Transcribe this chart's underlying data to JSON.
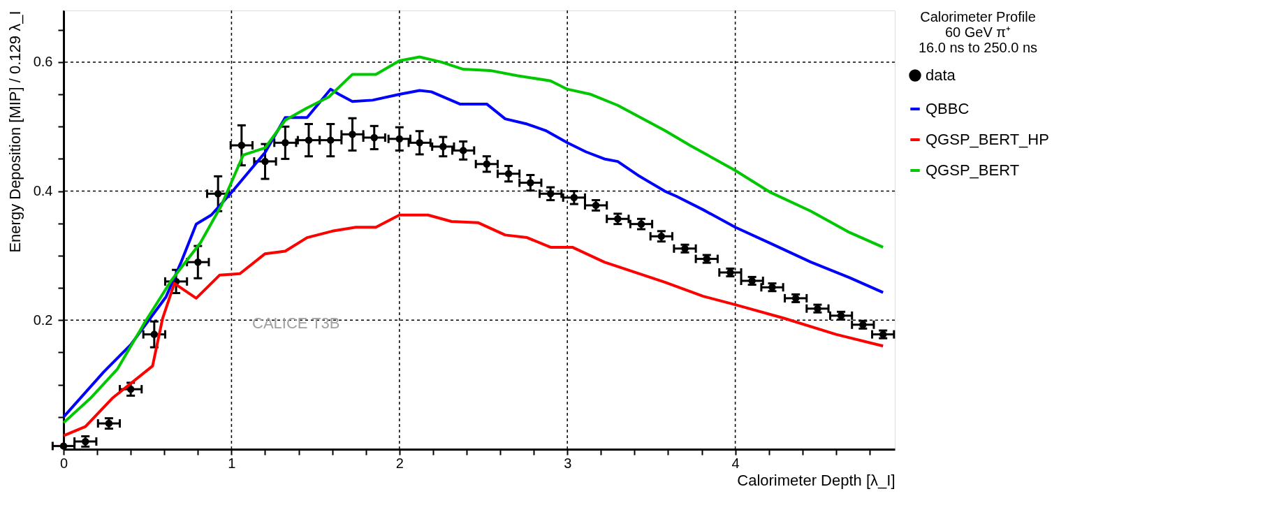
{
  "chart_data": {
    "type": "line",
    "xlabel": "Calorimeter Depth [λ_I]",
    "ylabel": "Energy Deposition [MIP] / 0.129 λ_I",
    "legend_title": "Calorimeter Profile\n60 GeV π⁺\n16.0 ns to 250.0 ns",
    "annotations": [
      "CALICE T3B"
    ],
    "xlim": [
      0,
      4.95
    ],
    "ylim": [
      0,
      0.68
    ],
    "xticks": [
      0,
      {
        "value": 0.2,
        "label": null
      },
      {
        "value": 0.4,
        "label": null
      },
      {
        "value": 0.6,
        "label": null
      },
      {
        "value": 0.8,
        "label": null
      },
      1,
      {
        "value": 1.2,
        "label": null
      },
      {
        "value": 1.4,
        "label": null
      },
      {
        "value": 1.6,
        "label": null
      },
      {
        "value": 1.8,
        "label": null
      },
      2,
      {
        "value": 2.2,
        "label": null
      },
      {
        "value": 2.4,
        "label": null
      },
      {
        "value": 2.6,
        "label": null
      },
      {
        "value": 2.8,
        "label": null
      },
      3,
      {
        "value": 3.2,
        "label": null
      },
      {
        "value": 3.4,
        "label": null
      },
      {
        "value": 3.6,
        "label": null
      },
      {
        "value": 3.8,
        "label": null
      },
      4,
      {
        "value": 4.2,
        "label": null
      },
      {
        "value": 4.4,
        "label": null
      },
      {
        "value": 4.6,
        "label": null
      },
      {
        "value": 4.8,
        "label": null
      }
    ],
    "yticks": [
      {
        "value": 0.05,
        "label": null
      },
      {
        "value": 0.1,
        "label": null
      },
      {
        "value": 0.15,
        "label": null
      },
      0.2,
      {
        "value": 0.25,
        "label": null
      },
      {
        "value": 0.3,
        "label": null
      },
      {
        "value": 0.35,
        "label": null
      },
      0.4,
      {
        "value": 0.45,
        "label": null
      },
      {
        "value": 0.5,
        "label": null
      },
      {
        "value": 0.55,
        "label": null
      },
      0.6,
      {
        "value": 0.65,
        "label": null
      }
    ],
    "grid": true,
    "legend": "top right",
    "series": [
      {
        "name": "data",
        "type": "scatter",
        "marker": "circle",
        "color": "#000000",
        "x": [
          0,
          0.13,
          0.27,
          0.4,
          0.54,
          0.67,
          0.8,
          0.92,
          1.06,
          1.2,
          1.32,
          1.46,
          1.59,
          1.72,
          1.85,
          2.0,
          2.12,
          2.26,
          2.38,
          2.52,
          2.65,
          2.78,
          2.9,
          3.04,
          3.17,
          3.3,
          3.44,
          3.56,
          3.7,
          3.83,
          3.97,
          4.1,
          4.22,
          4.36,
          4.49,
          4.63,
          4.76,
          4.88
        ],
        "values": [
          0.005,
          0.012,
          0.04,
          0.093,
          0.178,
          0.26,
          0.29,
          0.396,
          0.471,
          0.446,
          0.475,
          0.479,
          0.479,
          0.488,
          0.483,
          0.481,
          0.475,
          0.469,
          0.463,
          0.442,
          0.427,
          0.413,
          0.396,
          0.39,
          0.378,
          0.357,
          0.349,
          0.33,
          0.311,
          0.295,
          0.274,
          0.261,
          0.251,
          0.234,
          0.218,
          0.207,
          0.193,
          0.178
        ],
        "errors": [
          null,
          0.008,
          0.008,
          0.01,
          0.02,
          0.018,
          0.025,
          0.027,
          0.031,
          0.027,
          0.025,
          0.025,
          0.025,
          0.025,
          0.018,
          0.018,
          0.018,
          0.015,
          0.014,
          0.012,
          0.012,
          0.012,
          0.01,
          0.01,
          0.008,
          0.008,
          0.008,
          0.008,
          0.006,
          0.006,
          0.006,
          0.006,
          0.006,
          0.006,
          0.006,
          0.006,
          0.006,
          0.006
        ],
        "xerrors": [
          0.065,
          0.065,
          0.065,
          0.065,
          0.065,
          0.065,
          0.065,
          0.065,
          0.065,
          0.065,
          0.065,
          0.065,
          0.065,
          0.065,
          0.065,
          0.065,
          0.065,
          0.065,
          0.065,
          0.065,
          0.065,
          0.065,
          0.065,
          0.065,
          0.065,
          0.065,
          0.065,
          0.065,
          0.065,
          0.065,
          0.065,
          0.065,
          0.065,
          0.065,
          0.065,
          0.065,
          0.065,
          0.065
        ]
      },
      {
        "name": "QBBC",
        "color": "#0000ff",
        "x": [
          0,
          0.24,
          0.4,
          0.61,
          0.7,
          0.79,
          0.88,
          1.0,
          1.2,
          1.32,
          1.45,
          1.59,
          1.64,
          1.72,
          1.84,
          2.0,
          2.12,
          2.19,
          2.36,
          2.52,
          2.63,
          2.76,
          2.87,
          3.0,
          3.11,
          3.22,
          3.3,
          3.43,
          3.58,
          3.65,
          3.81,
          4.0,
          4.21,
          4.45,
          4.68,
          4.88
        ],
        "values": [
          0.05,
          0.12,
          0.162,
          0.236,
          0.29,
          0.349,
          0.363,
          0.398,
          0.46,
          0.514,
          0.514,
          0.558,
          0.55,
          0.539,
          0.541,
          0.55,
          0.556,
          0.554,
          0.535,
          0.535,
          0.512,
          0.504,
          0.494,
          0.475,
          0.461,
          0.45,
          0.446,
          0.423,
          0.4,
          0.392,
          0.371,
          0.344,
          0.319,
          0.29,
          0.266,
          0.243
        ]
      },
      {
        "name": "QGSP_BERT_HP",
        "color": "#ff0000",
        "x": [
          0,
          0.13,
          0.29,
          0.53,
          0.59,
          0.66,
          0.79,
          0.93,
          1.05,
          1.2,
          1.32,
          1.45,
          1.6,
          1.74,
          1.86,
          2.0,
          2.17,
          2.31,
          2.47,
          2.63,
          2.76,
          2.9,
          3.03,
          3.22,
          3.58,
          3.81,
          4.0,
          4.29,
          4.6,
          4.88
        ],
        "values": [
          0.021,
          0.035,
          0.079,
          0.129,
          0.203,
          0.257,
          0.234,
          0.27,
          0.272,
          0.303,
          0.307,
          0.328,
          0.338,
          0.344,
          0.344,
          0.363,
          0.363,
          0.353,
          0.351,
          0.332,
          0.328,
          0.313,
          0.313,
          0.29,
          0.259,
          0.237,
          0.224,
          0.203,
          0.178,
          0.16
        ]
      },
      {
        "name": "QGSP_BERT",
        "color": "#00c800",
        "x": [
          0,
          0.16,
          0.32,
          0.48,
          0.64,
          0.815,
          0.94,
          1.07,
          1.2,
          1.32,
          1.45,
          1.58,
          1.72,
          1.86,
          2.0,
          2.12,
          2.25,
          2.38,
          2.54,
          2.7,
          2.9,
          3.0,
          3.14,
          3.3,
          3.58,
          3.73,
          4.0,
          4.21,
          4.45,
          4.68,
          4.88
        ],
        "values": [
          0.041,
          0.079,
          0.124,
          0.195,
          0.261,
          0.32,
          0.378,
          0.456,
          0.467,
          0.51,
          0.529,
          0.546,
          0.581,
          0.581,
          0.602,
          0.608,
          0.6,
          0.589,
          0.587,
          0.579,
          0.571,
          0.558,
          0.55,
          0.533,
          0.494,
          0.471,
          0.432,
          0.398,
          0.369,
          0.336,
          0.313
        ]
      }
    ]
  }
}
